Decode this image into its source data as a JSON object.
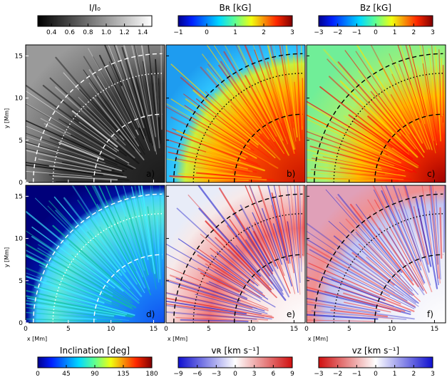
{
  "figure": {
    "colorbars_top": [
      {
        "label": "I/I₀",
        "ticks": [
          "0.4",
          "0.6",
          "0.8",
          "1.0",
          "1.2",
          "1.4"
        ],
        "range": [
          0.25,
          1.5
        ],
        "cmap": "gray"
      },
      {
        "label": "Bʀ [kG]",
        "ticks": [
          "−1",
          "0",
          "1",
          "2",
          "3"
        ],
        "range": [
          -1,
          3
        ],
        "cmap": "jet"
      },
      {
        "label": "Bᴢ [kG]",
        "ticks": [
          "−3",
          "−2",
          "−1",
          "0",
          "1",
          "2",
          "3"
        ],
        "range": [
          -3,
          3
        ],
        "cmap": "jet"
      }
    ],
    "colorbars_bottom": [
      {
        "label": "Inclination [deg]",
        "ticks": [
          "0",
          "45",
          "90",
          "135",
          "180"
        ],
        "range": [
          0,
          180
        ],
        "cmap": "jet"
      },
      {
        "label": "vʀ [km s⁻¹]",
        "ticks": [
          "−9",
          "−6",
          "−3",
          "0",
          "3",
          "6",
          "9"
        ],
        "range": [
          -9,
          9
        ],
        "cmap": "bwr"
      },
      {
        "label": "vᴢ [km s⁻¹]",
        "ticks": [
          "−3",
          "−2",
          "−1",
          "0",
          "1",
          "2",
          "3"
        ],
        "range": [
          -3,
          3
        ],
        "cmap": "rwb"
      }
    ],
    "panels": [
      {
        "id": "a",
        "label": "a)",
        "map": "intensity"
      },
      {
        "id": "b",
        "label": "b)",
        "map": "BR"
      },
      {
        "id": "c",
        "label": "c)",
        "map": "Bz"
      },
      {
        "id": "d",
        "label": "d)",
        "map": "inclination"
      },
      {
        "id": "e",
        "label": "e)",
        "map": "vR"
      },
      {
        "id": "f",
        "label": "f)",
        "map": "vz"
      }
    ],
    "axes": {
      "xlabel": "x [Mm]",
      "ylabel": "y [Mm]",
      "xticks": [
        "0",
        "5",
        "10",
        "15"
      ],
      "yticks": [
        "0",
        "5",
        "10",
        "15"
      ],
      "xlim": [
        0,
        16.3
      ],
      "ylim": [
        0,
        16.3
      ]
    },
    "contours": [
      {
        "style": "dashed",
        "radius_mm": 8.0
      },
      {
        "style": "dotted",
        "radius_mm": 12.8
      },
      {
        "style": "dashed",
        "radius_mm": 15.1
      }
    ]
  }
}
